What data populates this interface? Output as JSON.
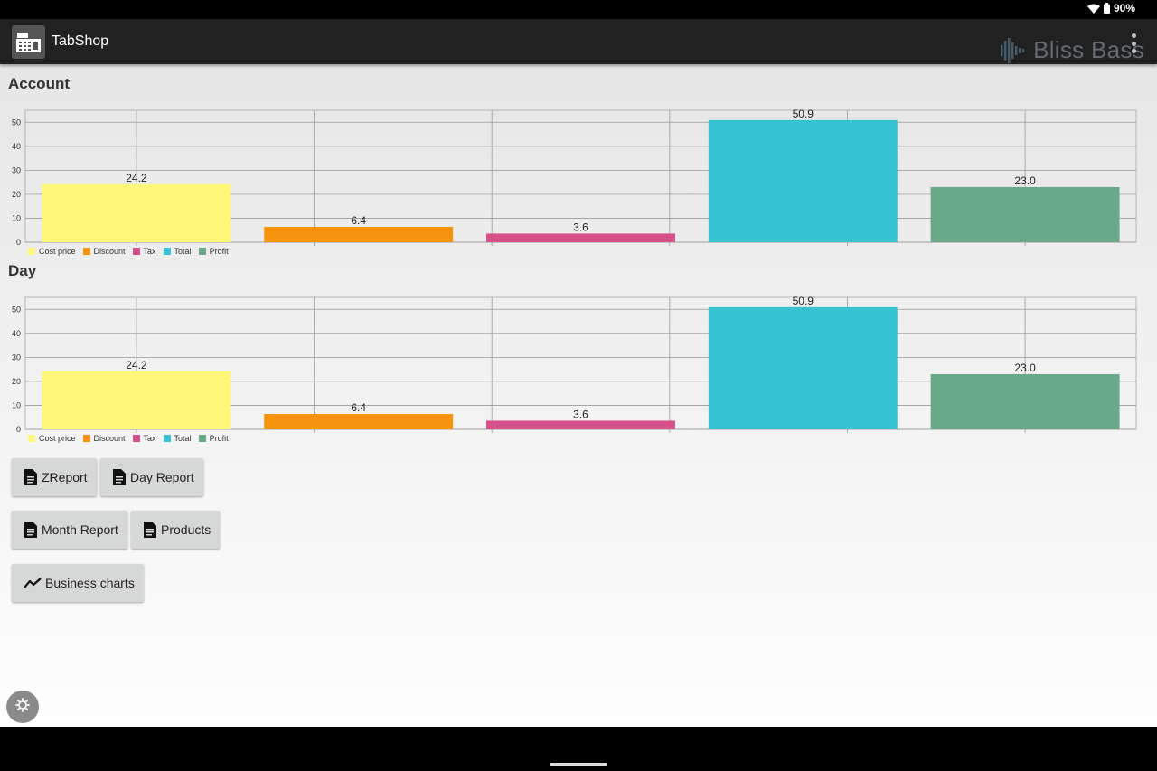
{
  "status_bar": {
    "battery": "90%"
  },
  "app_bar": {
    "title": "TabShop",
    "watermark": "Bliss Bass"
  },
  "sections": {
    "account": {
      "title": "Account"
    },
    "day": {
      "title": "Day"
    }
  },
  "chart_data": [
    {
      "type": "bar",
      "categories": [
        "Cost price",
        "Discount",
        "Tax",
        "Total",
        "Profit"
      ],
      "values": [
        24.2,
        6.4,
        3.6,
        50.9,
        23.0
      ],
      "value_labels": [
        "24.2",
        "6.4",
        "3.6",
        "50.9",
        "23.0"
      ],
      "colors": [
        "#fff77a",
        "#f7940f",
        "#d6508a",
        "#36c2d3",
        "#6aa987"
      ],
      "ylim": [
        0,
        55
      ],
      "yticks": [
        0,
        10,
        20,
        30,
        40,
        50
      ],
      "grid": true,
      "legend": "bottom-left"
    },
    {
      "type": "bar",
      "categories": [
        "Cost price",
        "Discount",
        "Tax",
        "Total",
        "Profit"
      ],
      "values": [
        24.2,
        6.4,
        3.6,
        50.9,
        23.0
      ],
      "value_labels": [
        "24.2",
        "6.4",
        "3.6",
        "50.9",
        "23.0"
      ],
      "colors": [
        "#fff77a",
        "#f7940f",
        "#d6508a",
        "#36c2d3",
        "#6aa987"
      ],
      "ylim": [
        0,
        55
      ],
      "yticks": [
        0,
        10,
        20,
        30,
        40,
        50
      ],
      "grid": true,
      "legend": "bottom-left"
    }
  ],
  "buttons": {
    "zreport": "ZReport",
    "day_report": "Day Report",
    "month_report": "Month Report",
    "products": "Products",
    "business_charts": "Business charts"
  },
  "icons": {
    "document": "document-icon",
    "chart": "trending-line-icon",
    "settings": "gear-icon",
    "wifi": "wifi-icon",
    "battery": "battery-icon",
    "menu": "overflow-menu-icon"
  }
}
